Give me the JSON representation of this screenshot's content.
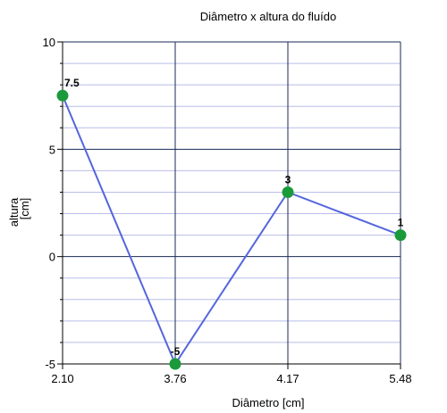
{
  "chart_data": {
    "type": "line",
    "title": "Diâmetro x altura do fluído",
    "xlabel": "Diâmetro [cm]",
    "ylabel": [
      "altura",
      "[cm]"
    ],
    "categories": [
      "2.10",
      "3.76",
      "4.17",
      "5.48"
    ],
    "values": [
      7.5,
      -5,
      3,
      1
    ],
    "data_labels": [
      "7.5",
      "-5",
      "3",
      "1"
    ],
    "ylim": [
      -5,
      10
    ],
    "yticks": [
      10,
      5,
      0,
      -5
    ],
    "ytick_labels": [
      "10",
      "5",
      "0",
      "-5"
    ],
    "grid": true,
    "minor_y_step": 1,
    "colors": {
      "line": "#5566dd",
      "marker": "#1a9a3a",
      "major_grid": "#1a2a55",
      "minor_grid": "#b8bde8"
    }
  }
}
